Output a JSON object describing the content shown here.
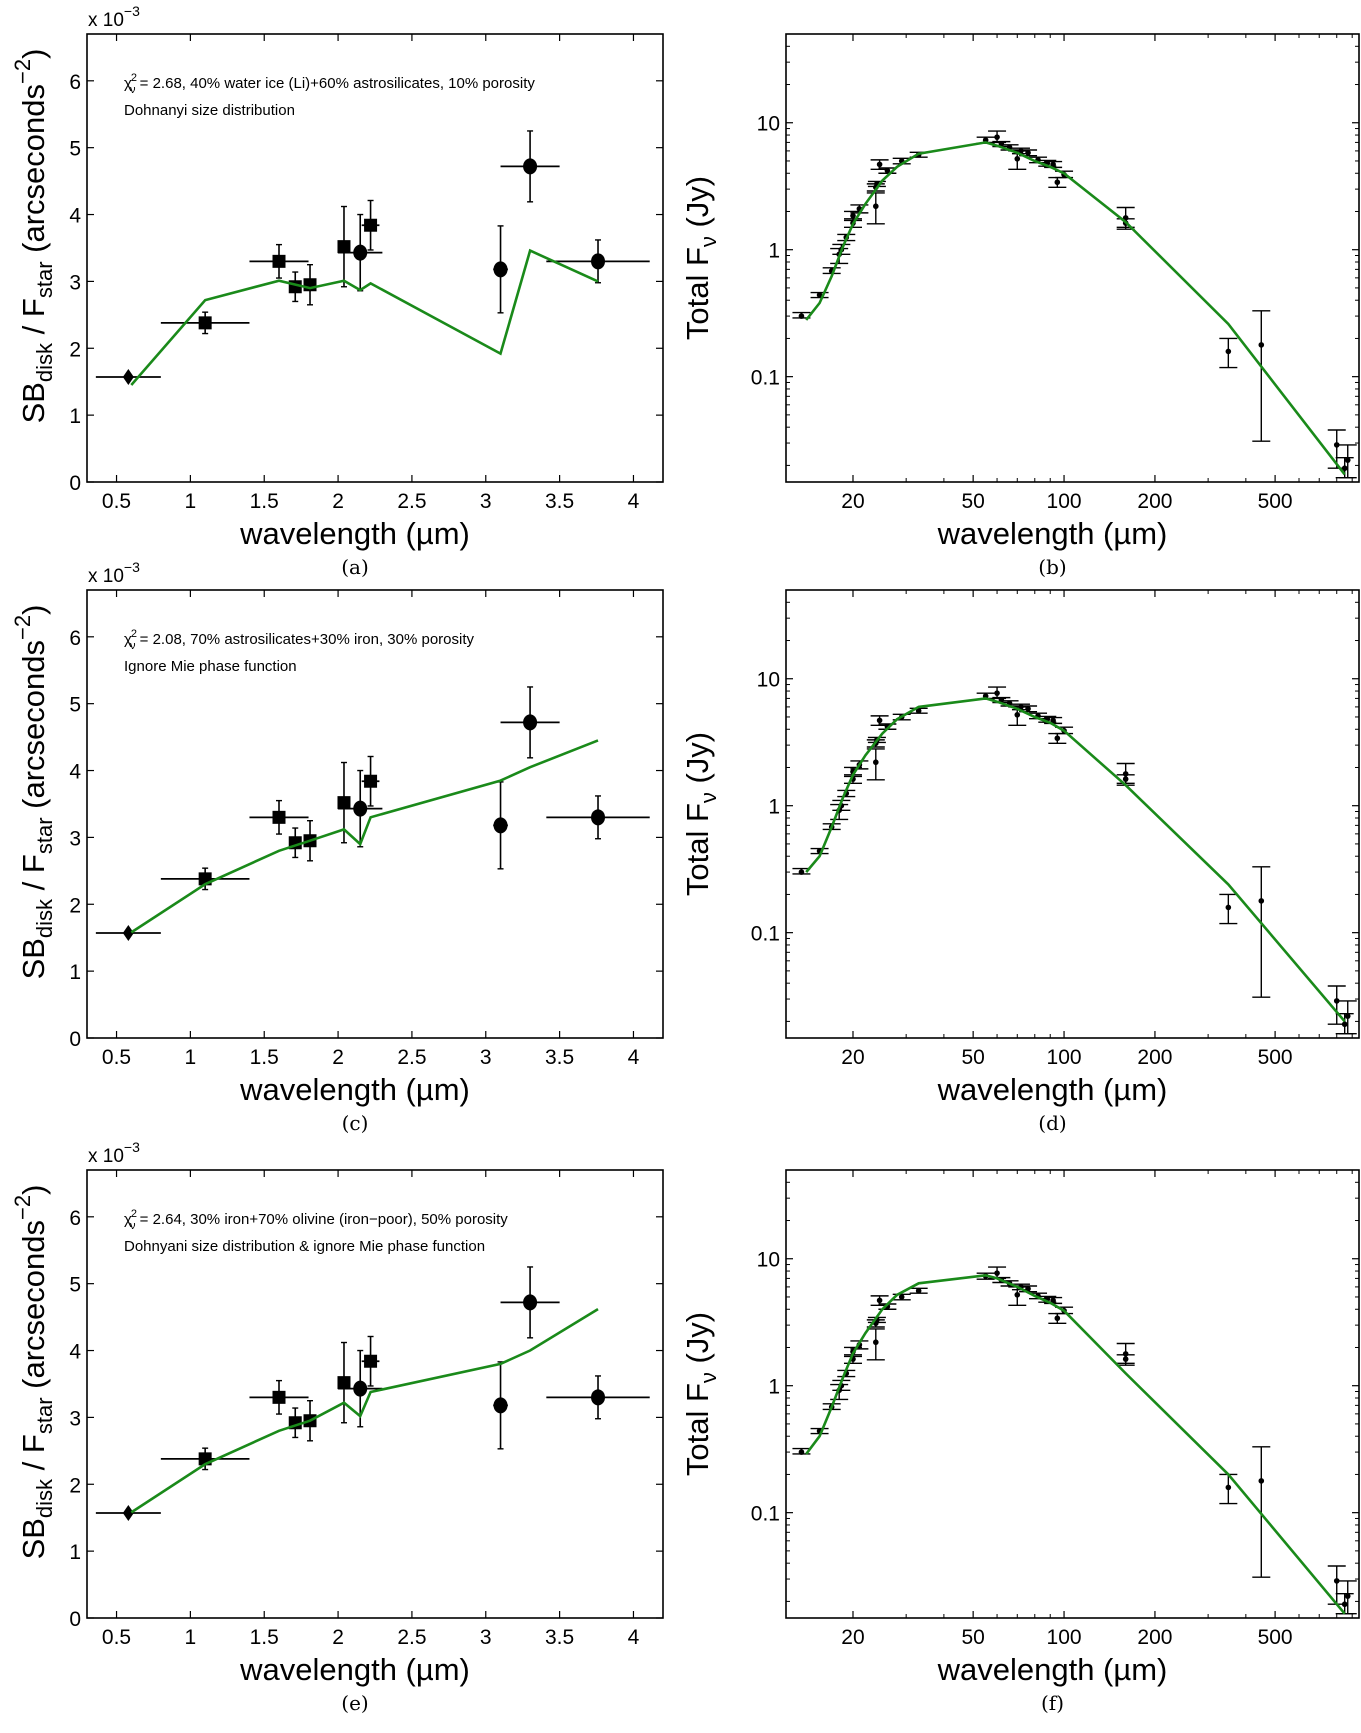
{
  "figure": {
    "panels": [
      {
        "id": "a",
        "caption": "(a)"
      },
      {
        "id": "b",
        "caption": "(b)"
      },
      {
        "id": "c",
        "caption": "(c)"
      },
      {
        "id": "d",
        "caption": "(d)"
      },
      {
        "id": "e",
        "caption": "(e)"
      },
      {
        "id": "f",
        "caption": "(f)"
      }
    ]
  },
  "colors": {
    "model": "#1a8a1a",
    "data": "#000000",
    "axis": "#000000"
  },
  "chart_data": [
    {
      "id": "a",
      "type": "scatter",
      "caption": "(a)",
      "xlabel": "wavelength (µm)",
      "ylabel": "SB_disk / F_star (arcseconds^-2)",
      "ylabel_parts": {
        "main1": "SB",
        "sub1": "disk",
        "mid": " / F",
        "sub2": "star",
        "tail": " (arcseconds",
        "sup": "−2",
        "close": ")"
      },
      "y_multiplier": "x 10^-3",
      "y_multiplier_parts": {
        "base": "x 10",
        "exp": "−3"
      },
      "annotation": [
        "= 2.68, 40% water ice (Li)+60% astrosilicates, 10% porosity",
        "Dohnanyi size distribution"
      ],
      "chi_symbol": "χ",
      "chi_sup": "2",
      "chi_sub": "ν",
      "xlim": [
        0.3,
        4.2
      ],
      "ylim": [
        0,
        6.7
      ],
      "xscale": "linear",
      "yscale": "linear",
      "xticks": [
        0.5,
        1,
        1.5,
        2,
        2.5,
        3,
        3.5,
        4
      ],
      "xtick_labels": [
        "0.5",
        "1",
        "1.5",
        "2",
        "2.5",
        "3",
        "3.5",
        "4"
      ],
      "yticks": [
        0,
        1,
        2,
        3,
        4,
        5,
        6
      ],
      "ytick_labels": [
        "0",
        "1",
        "2",
        "3",
        "4",
        "5",
        "6"
      ],
      "points": [
        {
          "x": 0.58,
          "y": 1.57,
          "xerr": 0.22,
          "yerr": 0.0,
          "marker": "diamond"
        },
        {
          "x": 1.1,
          "y": 2.38,
          "xerr": 0.3,
          "yerr": 0.16,
          "marker": "square"
        },
        {
          "x": 1.6,
          "y": 3.3,
          "xerr": 0.2,
          "yerr": 0.25,
          "marker": "square"
        },
        {
          "x": 1.71,
          "y": 2.92,
          "xerr": 0.0,
          "yerr": 0.22,
          "marker": "square"
        },
        {
          "x": 1.81,
          "y": 2.95,
          "xerr": 0.0,
          "yerr": 0.3,
          "marker": "square"
        },
        {
          "x": 2.04,
          "y": 3.52,
          "xerr": 0.0,
          "yerr": 0.6,
          "marker": "square"
        },
        {
          "x": 2.15,
          "y": 3.43,
          "xerr": 0.15,
          "yerr": 0.57,
          "marker": "circle"
        },
        {
          "x": 2.22,
          "y": 3.84,
          "xerr": 0.06,
          "yerr": 0.37,
          "marker": "square"
        },
        {
          "x": 3.1,
          "y": 3.18,
          "xerr": 0.05,
          "yerr": 0.65,
          "marker": "circle"
        },
        {
          "x": 3.3,
          "y": 4.72,
          "xerr": 0.2,
          "yerr": 0.53,
          "marker": "circle"
        },
        {
          "x": 3.76,
          "y": 3.3,
          "xerr": 0.35,
          "yerr": 0.32,
          "marker": "circle"
        }
      ],
      "model": {
        "name": "model",
        "x": [
          0.6,
          1.1,
          1.6,
          1.81,
          2.04,
          2.15,
          2.22,
          3.1,
          3.3,
          3.76
        ],
        "y": [
          1.45,
          2.72,
          3.01,
          2.9,
          3.01,
          2.87,
          2.97,
          1.92,
          3.46,
          3.0
        ]
      }
    },
    {
      "id": "b",
      "type": "scatter",
      "caption": "(b)",
      "xlabel": "wavelength (µm)",
      "ylabel": "Total F_ν (Jy)",
      "ylabel_parts": {
        "main": "Total F",
        "sub": "ν",
        "tail": " (Jy)"
      },
      "xlim": [
        12,
        948
      ],
      "ylim": [
        0.0148,
        50
      ],
      "xscale": "log",
      "yscale": "log",
      "xticks": [
        20,
        50,
        100,
        200,
        500
      ],
      "xtick_labels": [
        "20",
        "50",
        "100",
        "200",
        "500"
      ],
      "yticks": [
        0.1,
        1,
        10
      ],
      "ytick_labels": [
        "0.1",
        "1",
        "10"
      ],
      "points": "sed_points",
      "model": {
        "name": "model",
        "x": [
          14,
          15.5,
          17,
          18.5,
          20,
          22,
          25,
          28,
          33,
          55,
          60,
          70,
          80,
          90,
          100,
          160,
          350,
          850
        ],
        "y": [
          0.28,
          0.38,
          0.62,
          1.05,
          1.6,
          2.3,
          3.5,
          4.5,
          5.7,
          7.0,
          6.6,
          5.8,
          5.0,
          4.5,
          4.0,
          1.65,
          0.26,
          0.017
        ]
      }
    },
    {
      "id": "c",
      "type": "scatter",
      "caption": "(c)",
      "xlabel": "wavelength (µm)",
      "ylabel": "SB_disk / F_star (arcseconds^-2)",
      "ylabel_parts": {
        "main1": "SB",
        "sub1": "disk",
        "mid": " / F",
        "sub2": "star",
        "tail": " (arcseconds",
        "sup": "−2",
        "close": ")"
      },
      "y_multiplier": "x 10^-3",
      "y_multiplier_parts": {
        "base": "x 10",
        "exp": "−3"
      },
      "annotation": [
        "= 2.08, 70% astrosilicates+30% iron, 30% porosity",
        "Ignore Mie phase function"
      ],
      "chi_symbol": "χ",
      "chi_sup": "2",
      "chi_sub": "ν",
      "xlim": [
        0.3,
        4.2
      ],
      "ylim": [
        0,
        6.7
      ],
      "xscale": "linear",
      "yscale": "linear",
      "xticks": [
        0.5,
        1,
        1.5,
        2,
        2.5,
        3,
        3.5,
        4
      ],
      "xtick_labels": [
        "0.5",
        "1",
        "1.5",
        "2",
        "2.5",
        "3",
        "3.5",
        "4"
      ],
      "yticks": [
        0,
        1,
        2,
        3,
        4,
        5,
        6
      ],
      "ytick_labels": [
        "0",
        "1",
        "2",
        "3",
        "4",
        "5",
        "6"
      ],
      "points": "sb_points",
      "model": {
        "name": "model",
        "x": [
          0.6,
          1.1,
          1.6,
          1.81,
          2.04,
          2.15,
          2.22,
          3.1,
          3.3,
          3.76
        ],
        "y": [
          1.58,
          2.3,
          2.8,
          2.95,
          3.12,
          2.9,
          3.3,
          3.85,
          4.05,
          4.45
        ]
      }
    },
    {
      "id": "d",
      "type": "scatter",
      "caption": "(d)",
      "xlabel": "wavelength (µm)",
      "ylabel": "Total F_ν (Jy)",
      "ylabel_parts": {
        "main": "Total F",
        "sub": "ν",
        "tail": " (Jy)"
      },
      "xlim": [
        12,
        948
      ],
      "ylim": [
        0.0148,
        50
      ],
      "xscale": "log",
      "yscale": "log",
      "xticks": [
        20,
        50,
        100,
        200,
        500
      ],
      "xtick_labels": [
        "20",
        "50",
        "100",
        "200",
        "500"
      ],
      "yticks": [
        0.1,
        1,
        10
      ],
      "ytick_labels": [
        "0.1",
        "1",
        "10"
      ],
      "points": "sed_points",
      "model": {
        "name": "model",
        "x": [
          14,
          15.5,
          17,
          18.5,
          20,
          22,
          25,
          28,
          33,
          55,
          60,
          70,
          80,
          90,
          100,
          160,
          350,
          850
        ],
        "y": [
          0.3,
          0.4,
          0.68,
          1.15,
          1.75,
          2.5,
          3.7,
          4.8,
          6.0,
          7.0,
          6.6,
          5.8,
          5.0,
          4.5,
          3.9,
          1.45,
          0.24,
          0.02
        ]
      }
    },
    {
      "id": "e",
      "type": "scatter",
      "caption": "(e)",
      "xlabel": "wavelength (µm)",
      "ylabel": "SB_disk / F_star (arcseconds^-2)",
      "ylabel_parts": {
        "main1": "SB",
        "sub1": "disk",
        "mid": " / F",
        "sub2": "star",
        "tail": " (arcseconds",
        "sup": "−2",
        "close": ")"
      },
      "y_multiplier": "x 10^-3",
      "y_multiplier_parts": {
        "base": "x 10",
        "exp": "−3"
      },
      "annotation": [
        "= 2.64, 30% iron+70% olivine (iron−poor), 50% porosity",
        "Dohnyani size distribution & ignore Mie phase function"
      ],
      "chi_symbol": "χ",
      "chi_sup": "2",
      "chi_sub": "ν",
      "xlim": [
        0.3,
        4.2
      ],
      "ylim": [
        0,
        6.7
      ],
      "xscale": "linear",
      "yscale": "linear",
      "xticks": [
        0.5,
        1,
        1.5,
        2,
        2.5,
        3,
        3.5,
        4
      ],
      "xtick_labels": [
        "0.5",
        "1",
        "1.5",
        "2",
        "2.5",
        "3",
        "3.5",
        "4"
      ],
      "yticks": [
        0,
        1,
        2,
        3,
        4,
        5,
        6
      ],
      "ytick_labels": [
        "0",
        "1",
        "2",
        "3",
        "4",
        "5",
        "6"
      ],
      "points": "sb_points",
      "model": {
        "name": "model",
        "x": [
          0.6,
          1.1,
          1.6,
          1.81,
          2.04,
          2.15,
          2.22,
          3.1,
          3.3,
          3.76
        ],
        "y": [
          1.58,
          2.3,
          2.8,
          2.95,
          3.22,
          3.02,
          3.38,
          3.8,
          4.0,
          4.62
        ]
      }
    },
    {
      "id": "f",
      "type": "scatter",
      "caption": "(f)",
      "xlabel": "wavelength (µm)",
      "ylabel": "Total F_ν (Jy)",
      "ylabel_parts": {
        "main": "Total F",
        "sub": "ν",
        "tail": " (Jy)"
      },
      "xlim": [
        12,
        948
      ],
      "ylim": [
        0.0148,
        50
      ],
      "xscale": "log",
      "yscale": "log",
      "xticks": [
        20,
        50,
        100,
        200,
        500
      ],
      "xtick_labels": [
        "20",
        "50",
        "100",
        "200",
        "500"
      ],
      "yticks": [
        0.1,
        1,
        10
      ],
      "ytick_labels": [
        "0.1",
        "1",
        "10"
      ],
      "points": "sed_points",
      "model": {
        "name": "model",
        "x": [
          14,
          15.5,
          17,
          18.5,
          20,
          22,
          25,
          28,
          33,
          55,
          60,
          70,
          80,
          90,
          100,
          160,
          350,
          850
        ],
        "y": [
          0.29,
          0.4,
          0.68,
          1.15,
          1.8,
          2.6,
          4.0,
          5.2,
          6.4,
          7.4,
          7.0,
          6.0,
          5.1,
          4.5,
          3.9,
          1.25,
          0.2,
          0.016
        ]
      }
    }
  ],
  "sb_points": [
    {
      "x": 0.58,
      "y": 1.57,
      "xerr": 0.22,
      "yerr": 0.0,
      "marker": "diamond"
    },
    {
      "x": 1.1,
      "y": 2.38,
      "xerr": 0.3,
      "yerr": 0.16,
      "marker": "square"
    },
    {
      "x": 1.6,
      "y": 3.3,
      "xerr": 0.2,
      "yerr": 0.25,
      "marker": "square"
    },
    {
      "x": 1.71,
      "y": 2.92,
      "xerr": 0.0,
      "yerr": 0.22,
      "marker": "square"
    },
    {
      "x": 1.81,
      "y": 2.95,
      "xerr": 0.0,
      "yerr": 0.3,
      "marker": "square"
    },
    {
      "x": 2.04,
      "y": 3.52,
      "xerr": 0.0,
      "yerr": 0.6,
      "marker": "square"
    },
    {
      "x": 2.15,
      "y": 3.43,
      "xerr": 0.15,
      "yerr": 0.57,
      "marker": "circle"
    },
    {
      "x": 2.22,
      "y": 3.84,
      "xerr": 0.06,
      "yerr": 0.37,
      "marker": "square"
    },
    {
      "x": 3.1,
      "y": 3.18,
      "xerr": 0.05,
      "yerr": 0.65,
      "marker": "circle"
    },
    {
      "x": 3.3,
      "y": 4.72,
      "xerr": 0.2,
      "yerr": 0.53,
      "marker": "circle"
    },
    {
      "x": 3.76,
      "y": 3.3,
      "xerr": 0.35,
      "yerr": 0.32,
      "marker": "circle"
    }
  ],
  "sed_points": [
    {
      "x": 13.5,
      "y": 0.3,
      "ylo": 0.29,
      "yhi": 0.32
    },
    {
      "x": 15.5,
      "y": 0.44,
      "ylo": 0.42,
      "yhi": 0.46
    },
    {
      "x": 17.0,
      "y": 0.68,
      "ylo": 0.65,
      "yhi": 0.72
    },
    {
      "x": 18.0,
      "y": 0.92,
      "ylo": 0.78,
      "yhi": 1.02
    },
    {
      "x": 18.3,
      "y": 1.0,
      "ylo": 0.92,
      "yhi": 1.1
    },
    {
      "x": 19.0,
      "y": 1.25,
      "ylo": 1.18,
      "yhi": 1.32
    },
    {
      "x": 20.0,
      "y": 1.62,
      "ylo": 1.5,
      "yhi": 1.75
    },
    {
      "x": 20.0,
      "y": 1.85,
      "ylo": 1.7,
      "yhi": 2.0
    },
    {
      "x": 21.0,
      "y": 2.1,
      "ylo": 1.95,
      "yhi": 2.25
    },
    {
      "x": 23.8,
      "y": 2.2,
      "ylo": 1.6,
      "yhi": 2.8
    },
    {
      "x": 23.8,
      "y": 3.1,
      "ylo": 2.9,
      "yhi": 3.3
    },
    {
      "x": 24.0,
      "y": 3.3,
      "ylo": 3.15,
      "yhi": 3.45
    },
    {
      "x": 24.5,
      "y": 4.7,
      "ylo": 4.3,
      "yhi": 5.1
    },
    {
      "x": 26.0,
      "y": 4.2,
      "ylo": 4.0,
      "yhi": 4.4
    },
    {
      "x": 29.0,
      "y": 5.0,
      "ylo": 4.75,
      "yhi": 5.25
    },
    {
      "x": 33.0,
      "y": 5.6,
      "ylo": 5.35,
      "yhi": 5.85
    },
    {
      "x": 55.0,
      "y": 7.3,
      "ylo": 6.9,
      "yhi": 7.7
    },
    {
      "x": 60.0,
      "y": 7.7,
      "ylo": 7.0,
      "yhi": 8.6
    },
    {
      "x": 62.0,
      "y": 6.8,
      "ylo": 6.5,
      "yhi": 7.1
    },
    {
      "x": 66.0,
      "y": 6.4,
      "ylo": 6.1,
      "yhi": 6.7
    },
    {
      "x": 70.0,
      "y": 5.2,
      "ylo": 4.3,
      "yhi": 6.0
    },
    {
      "x": 72.0,
      "y": 6.0,
      "ylo": 5.7,
      "yhi": 6.3
    },
    {
      "x": 76.0,
      "y": 5.8,
      "ylo": 5.5,
      "yhi": 6.1
    },
    {
      "x": 82.0,
      "y": 5.1,
      "ylo": 4.85,
      "yhi": 5.35
    },
    {
      "x": 88.0,
      "y": 4.8,
      "ylo": 4.55,
      "yhi": 5.05
    },
    {
      "x": 92.0,
      "y": 4.7,
      "ylo": 4.45,
      "yhi": 4.95
    },
    {
      "x": 95.0,
      "y": 3.4,
      "ylo": 3.1,
      "yhi": 3.7
    },
    {
      "x": 100.0,
      "y": 3.9,
      "ylo": 3.7,
      "yhi": 4.15
    },
    {
      "x": 160.0,
      "y": 1.78,
      "ylo": 1.45,
      "yhi": 2.15
    },
    {
      "x": 160.0,
      "y": 1.62,
      "ylo": 1.5,
      "yhi": 1.75
    },
    {
      "x": 350.0,
      "y": 0.158,
      "ylo": 0.118,
      "yhi": 0.2
    },
    {
      "x": 450.0,
      "y": 0.178,
      "ylo": 0.031,
      "yhi": 0.33
    },
    {
      "x": 800.0,
      "y": 0.029,
      "ylo": 0.019,
      "yhi": 0.038
    },
    {
      "x": 850.0,
      "y": 0.019,
      "ylo": 0.016,
      "yhi": 0.023
    },
    {
      "x": 870.0,
      "y": 0.022,
      "ylo": 0.016,
      "yhi": 0.029
    }
  ]
}
